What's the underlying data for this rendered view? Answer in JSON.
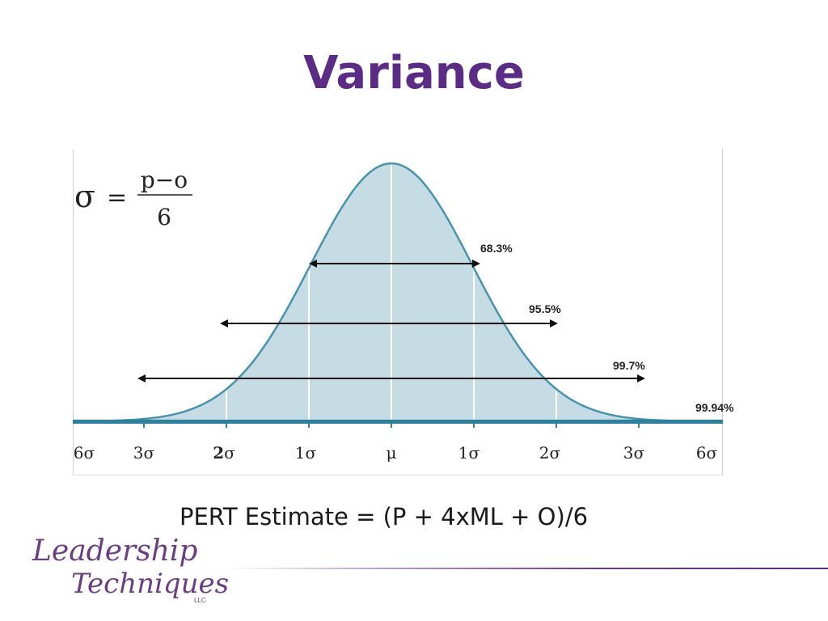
{
  "slide": {
    "title": "Variance",
    "pert_formula": "PERT Estimate = (P + 4xML + O)/6"
  },
  "sigma_formula": {
    "lhs": "σ",
    "equals": "=",
    "numerator": "p−o",
    "denominator": "6"
  },
  "distribution": {
    "intervals": [
      {
        "label": "68.3%"
      },
      {
        "label": "95.5%"
      },
      {
        "label": "99.7%"
      },
      {
        "label": "99.94%"
      }
    ],
    "axis_labels": [
      {
        "prefix": "6",
        "suffix": "σ"
      },
      {
        "prefix": "3",
        "suffix": "σ"
      },
      {
        "prefix": "2",
        "suffix": "σ"
      },
      {
        "prefix": "1",
        "suffix": "σ"
      },
      {
        "prefix": "",
        "suffix": "μ"
      },
      {
        "prefix": "1",
        "suffix": "σ"
      },
      {
        "prefix": "2",
        "suffix": "σ"
      },
      {
        "prefix": "3",
        "suffix": "σ"
      },
      {
        "prefix": "6",
        "suffix": "σ"
      }
    ],
    "colors": {
      "curve": "#4a93aa",
      "fill": "#c5dce4",
      "baseline": "#2d7f9c",
      "arrow": "#111111"
    }
  },
  "logo": {
    "line1": "Leadership",
    "line2": "Techniques",
    "suffix": "LLC"
  },
  "colors": {
    "title": "#5b2c83",
    "logo": "#6b3f7f"
  }
}
